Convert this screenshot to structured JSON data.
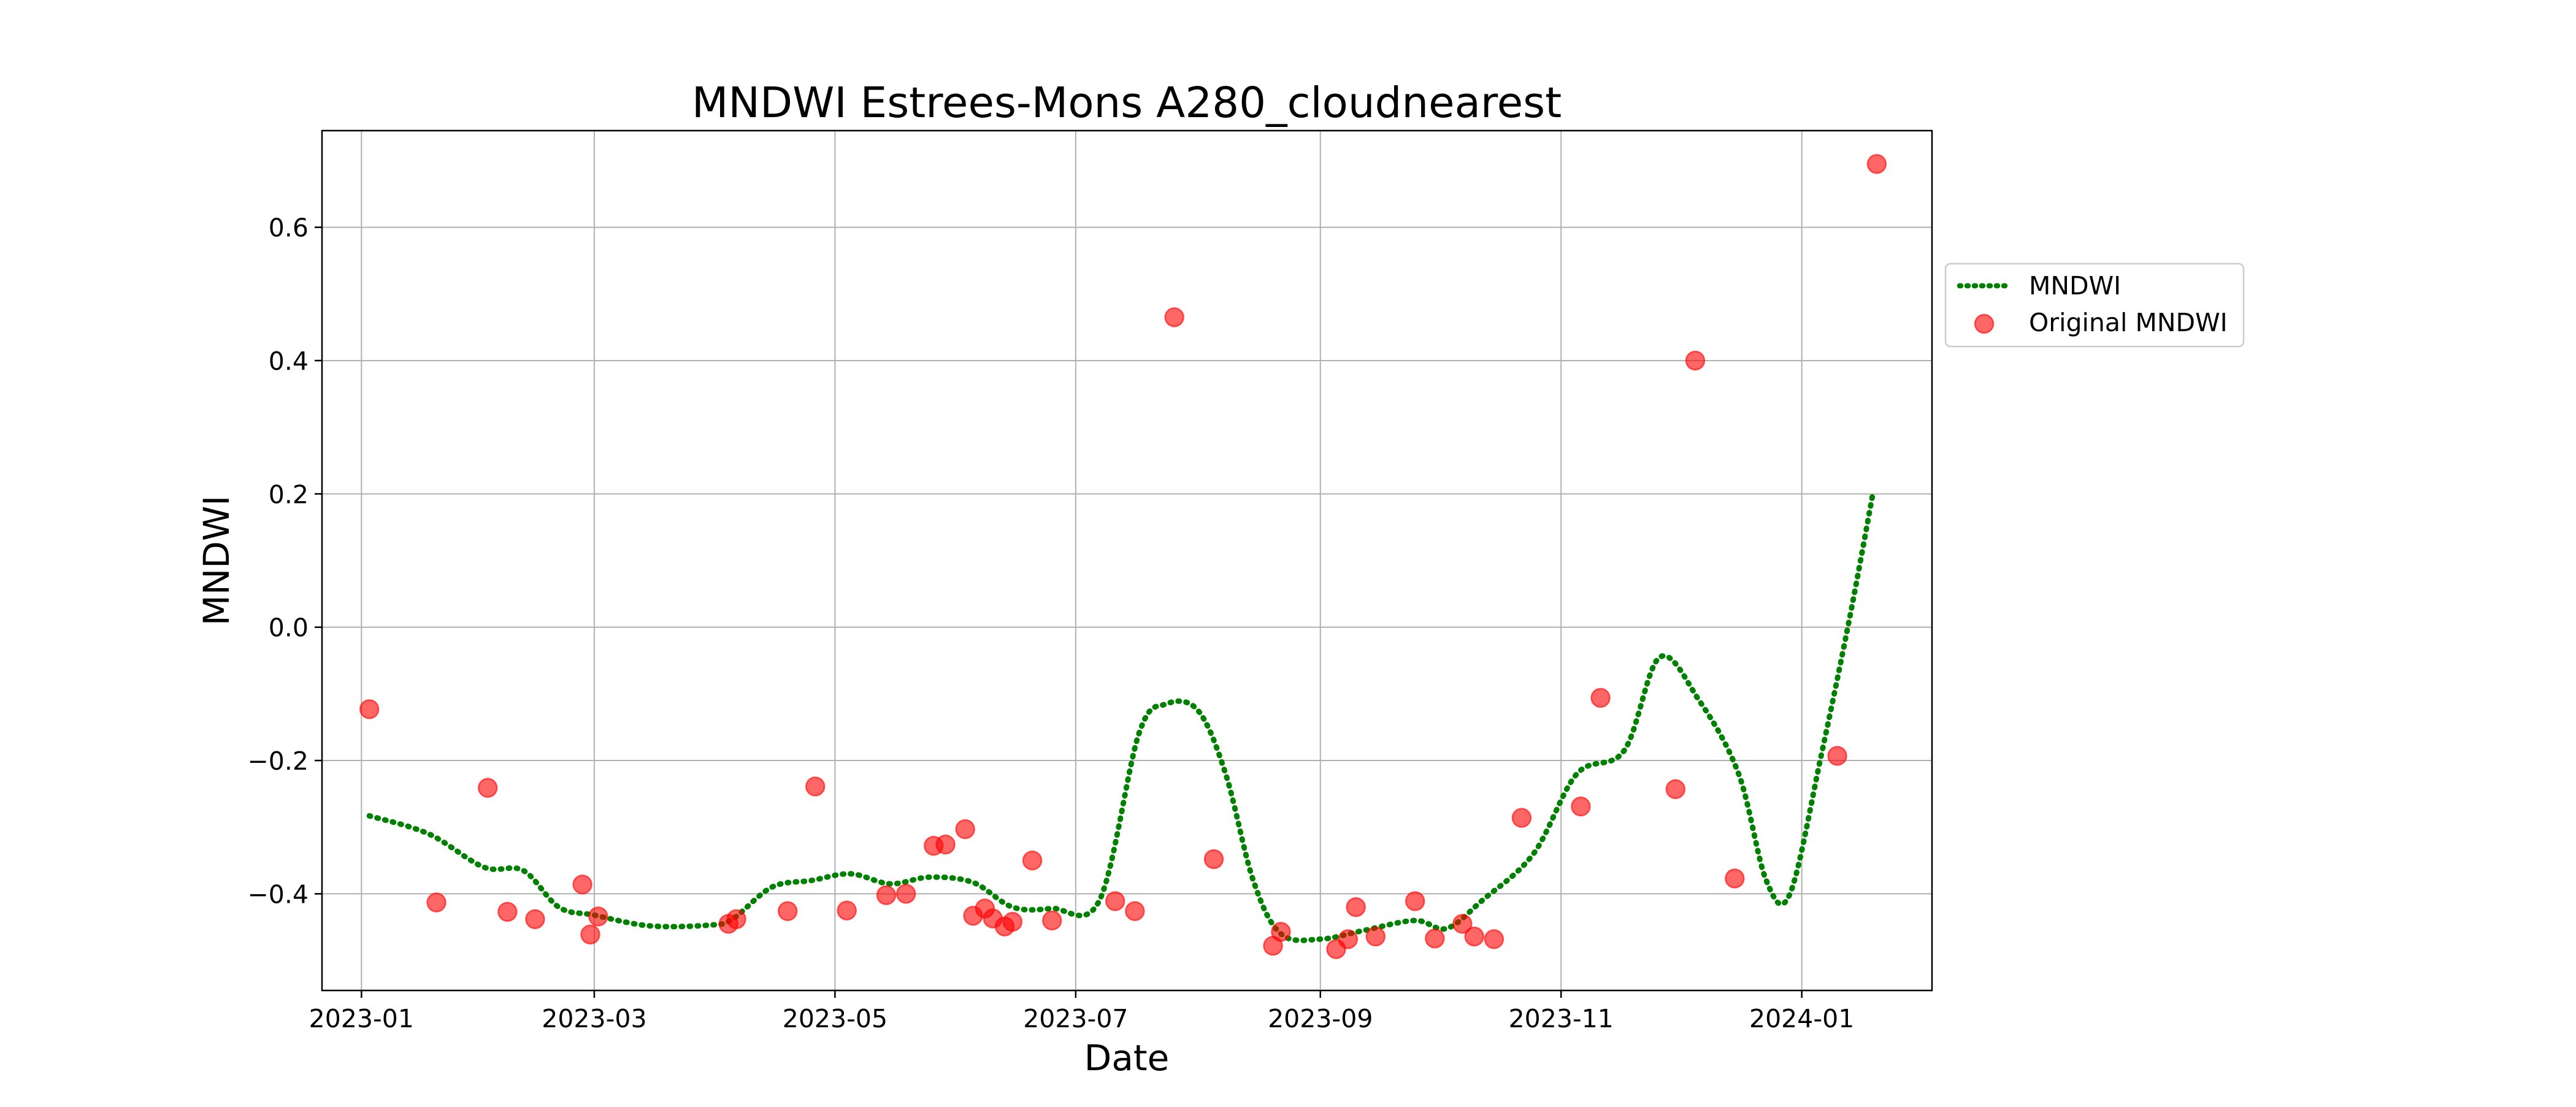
{
  "chart_data": {
    "type": "line",
    "title": "MNDWI Estrees-Mons A280_cloudnearest",
    "xlabel": "Date",
    "ylabel": "MNDWI",
    "x_axis_type": "date",
    "xlim": [
      "2022-12-22",
      "2024-02-03"
    ],
    "ylim": [
      -0.545,
      0.745
    ],
    "x_ticks": [
      "2023-01-01",
      "2023-03-01",
      "2023-05-01",
      "2023-07-01",
      "2023-09-01",
      "2023-11-01",
      "2024-01-01"
    ],
    "x_tick_labels": [
      "2023-01",
      "2023-03",
      "2023-05",
      "2023-07",
      "2023-09",
      "2023-11",
      "2024-01"
    ],
    "y_ticks": [
      -0.4,
      -0.2,
      0.0,
      0.2,
      0.4,
      0.6
    ],
    "y_tick_labels": [
      "−0.4",
      "−0.2",
      "0.0",
      "0.2",
      "0.4",
      "0.6"
    ],
    "grid": true,
    "legend_position": "outside-right",
    "series": [
      {
        "name": "MNDWI",
        "kind": "line",
        "style": "dotted",
        "color": "#008000",
        "points": [
          [
            "2023-01-03",
            -0.283
          ],
          [
            "2023-01-18",
            -0.31
          ],
          [
            "2023-02-01",
            -0.36
          ],
          [
            "2023-02-11",
            -0.365
          ],
          [
            "2023-02-20",
            -0.42
          ],
          [
            "2023-03-01",
            -0.432
          ],
          [
            "2023-03-15",
            -0.448
          ],
          [
            "2023-03-30",
            -0.447
          ],
          [
            "2023-04-05",
            -0.438
          ],
          [
            "2023-04-15",
            -0.39
          ],
          [
            "2023-04-25",
            -0.38
          ],
          [
            "2023-05-05",
            -0.37
          ],
          [
            "2023-05-15",
            -0.385
          ],
          [
            "2023-05-25",
            -0.375
          ],
          [
            "2023-06-05",
            -0.383
          ],
          [
            "2023-06-15",
            -0.42
          ],
          [
            "2023-06-25",
            -0.422
          ],
          [
            "2023-07-07",
            -0.41
          ],
          [
            "2023-07-17",
            -0.16
          ],
          [
            "2023-07-24",
            -0.115
          ],
          [
            "2023-08-01",
            -0.125
          ],
          [
            "2023-08-08",
            -0.22
          ],
          [
            "2023-08-15",
            -0.38
          ],
          [
            "2023-08-22",
            -0.46
          ],
          [
            "2023-09-01",
            -0.468
          ],
          [
            "2023-09-12",
            -0.455
          ],
          [
            "2023-09-25",
            -0.44
          ],
          [
            "2023-10-03",
            -0.452
          ],
          [
            "2023-10-12",
            -0.41
          ],
          [
            "2023-10-25",
            -0.34
          ],
          [
            "2023-11-05",
            -0.22
          ],
          [
            "2023-11-17",
            -0.185
          ],
          [
            "2023-11-26",
            -0.045
          ],
          [
            "2023-12-06",
            -0.11
          ],
          [
            "2023-12-16",
            -0.22
          ],
          [
            "2023-12-23",
            -0.38
          ],
          [
            "2023-12-29",
            -0.4
          ],
          [
            "2024-01-06",
            -0.19
          ],
          [
            "2024-01-13",
            0.01
          ],
          [
            "2024-01-19",
            0.2
          ]
        ]
      },
      {
        "name": "Original MNDWI",
        "kind": "scatter",
        "color": "#ff0000",
        "opacity": 0.6,
        "points": [
          [
            "2023-01-03",
            -0.123
          ],
          [
            "2023-01-20",
            -0.413
          ],
          [
            "2023-02-02",
            -0.241
          ],
          [
            "2023-02-07",
            -0.427
          ],
          [
            "2023-02-14",
            -0.438
          ],
          [
            "2023-02-26",
            -0.386
          ],
          [
            "2023-02-28",
            -0.461
          ],
          [
            "2023-03-02",
            -0.434
          ],
          [
            "2023-04-04",
            -0.445
          ],
          [
            "2023-04-06",
            -0.438
          ],
          [
            "2023-04-19",
            -0.426
          ],
          [
            "2023-04-26",
            -0.239
          ],
          [
            "2023-05-04",
            -0.425
          ],
          [
            "2023-05-14",
            -0.402
          ],
          [
            "2023-05-19",
            -0.4
          ],
          [
            "2023-05-26",
            -0.328
          ],
          [
            "2023-05-29",
            -0.326
          ],
          [
            "2023-06-03",
            -0.303
          ],
          [
            "2023-06-05",
            -0.433
          ],
          [
            "2023-06-08",
            -0.422
          ],
          [
            "2023-06-10",
            -0.437
          ],
          [
            "2023-06-13",
            -0.449
          ],
          [
            "2023-06-15",
            -0.442
          ],
          [
            "2023-06-20",
            -0.35
          ],
          [
            "2023-06-25",
            -0.44
          ],
          [
            "2023-07-11",
            -0.411
          ],
          [
            "2023-07-16",
            -0.426
          ],
          [
            "2023-07-26",
            0.465
          ],
          [
            "2023-08-05",
            -0.348
          ],
          [
            "2023-08-20",
            -0.478
          ],
          [
            "2023-08-22",
            -0.457
          ],
          [
            "2023-09-05",
            -0.483
          ],
          [
            "2023-09-08",
            -0.468
          ],
          [
            "2023-09-10",
            -0.42
          ],
          [
            "2023-09-15",
            -0.464
          ],
          [
            "2023-09-25",
            -0.411
          ],
          [
            "2023-09-30",
            -0.467
          ],
          [
            "2023-10-07",
            -0.445
          ],
          [
            "2023-10-10",
            -0.464
          ],
          [
            "2023-10-15",
            -0.468
          ],
          [
            "2023-10-22",
            -0.286
          ],
          [
            "2023-11-06",
            -0.269
          ],
          [
            "2023-11-11",
            -0.106
          ],
          [
            "2023-11-30",
            -0.243
          ],
          [
            "2023-12-05",
            0.4
          ],
          [
            "2023-12-15",
            -0.377
          ],
          [
            "2024-01-10",
            -0.193
          ],
          [
            "2024-01-20",
            0.695
          ]
        ]
      }
    ]
  }
}
